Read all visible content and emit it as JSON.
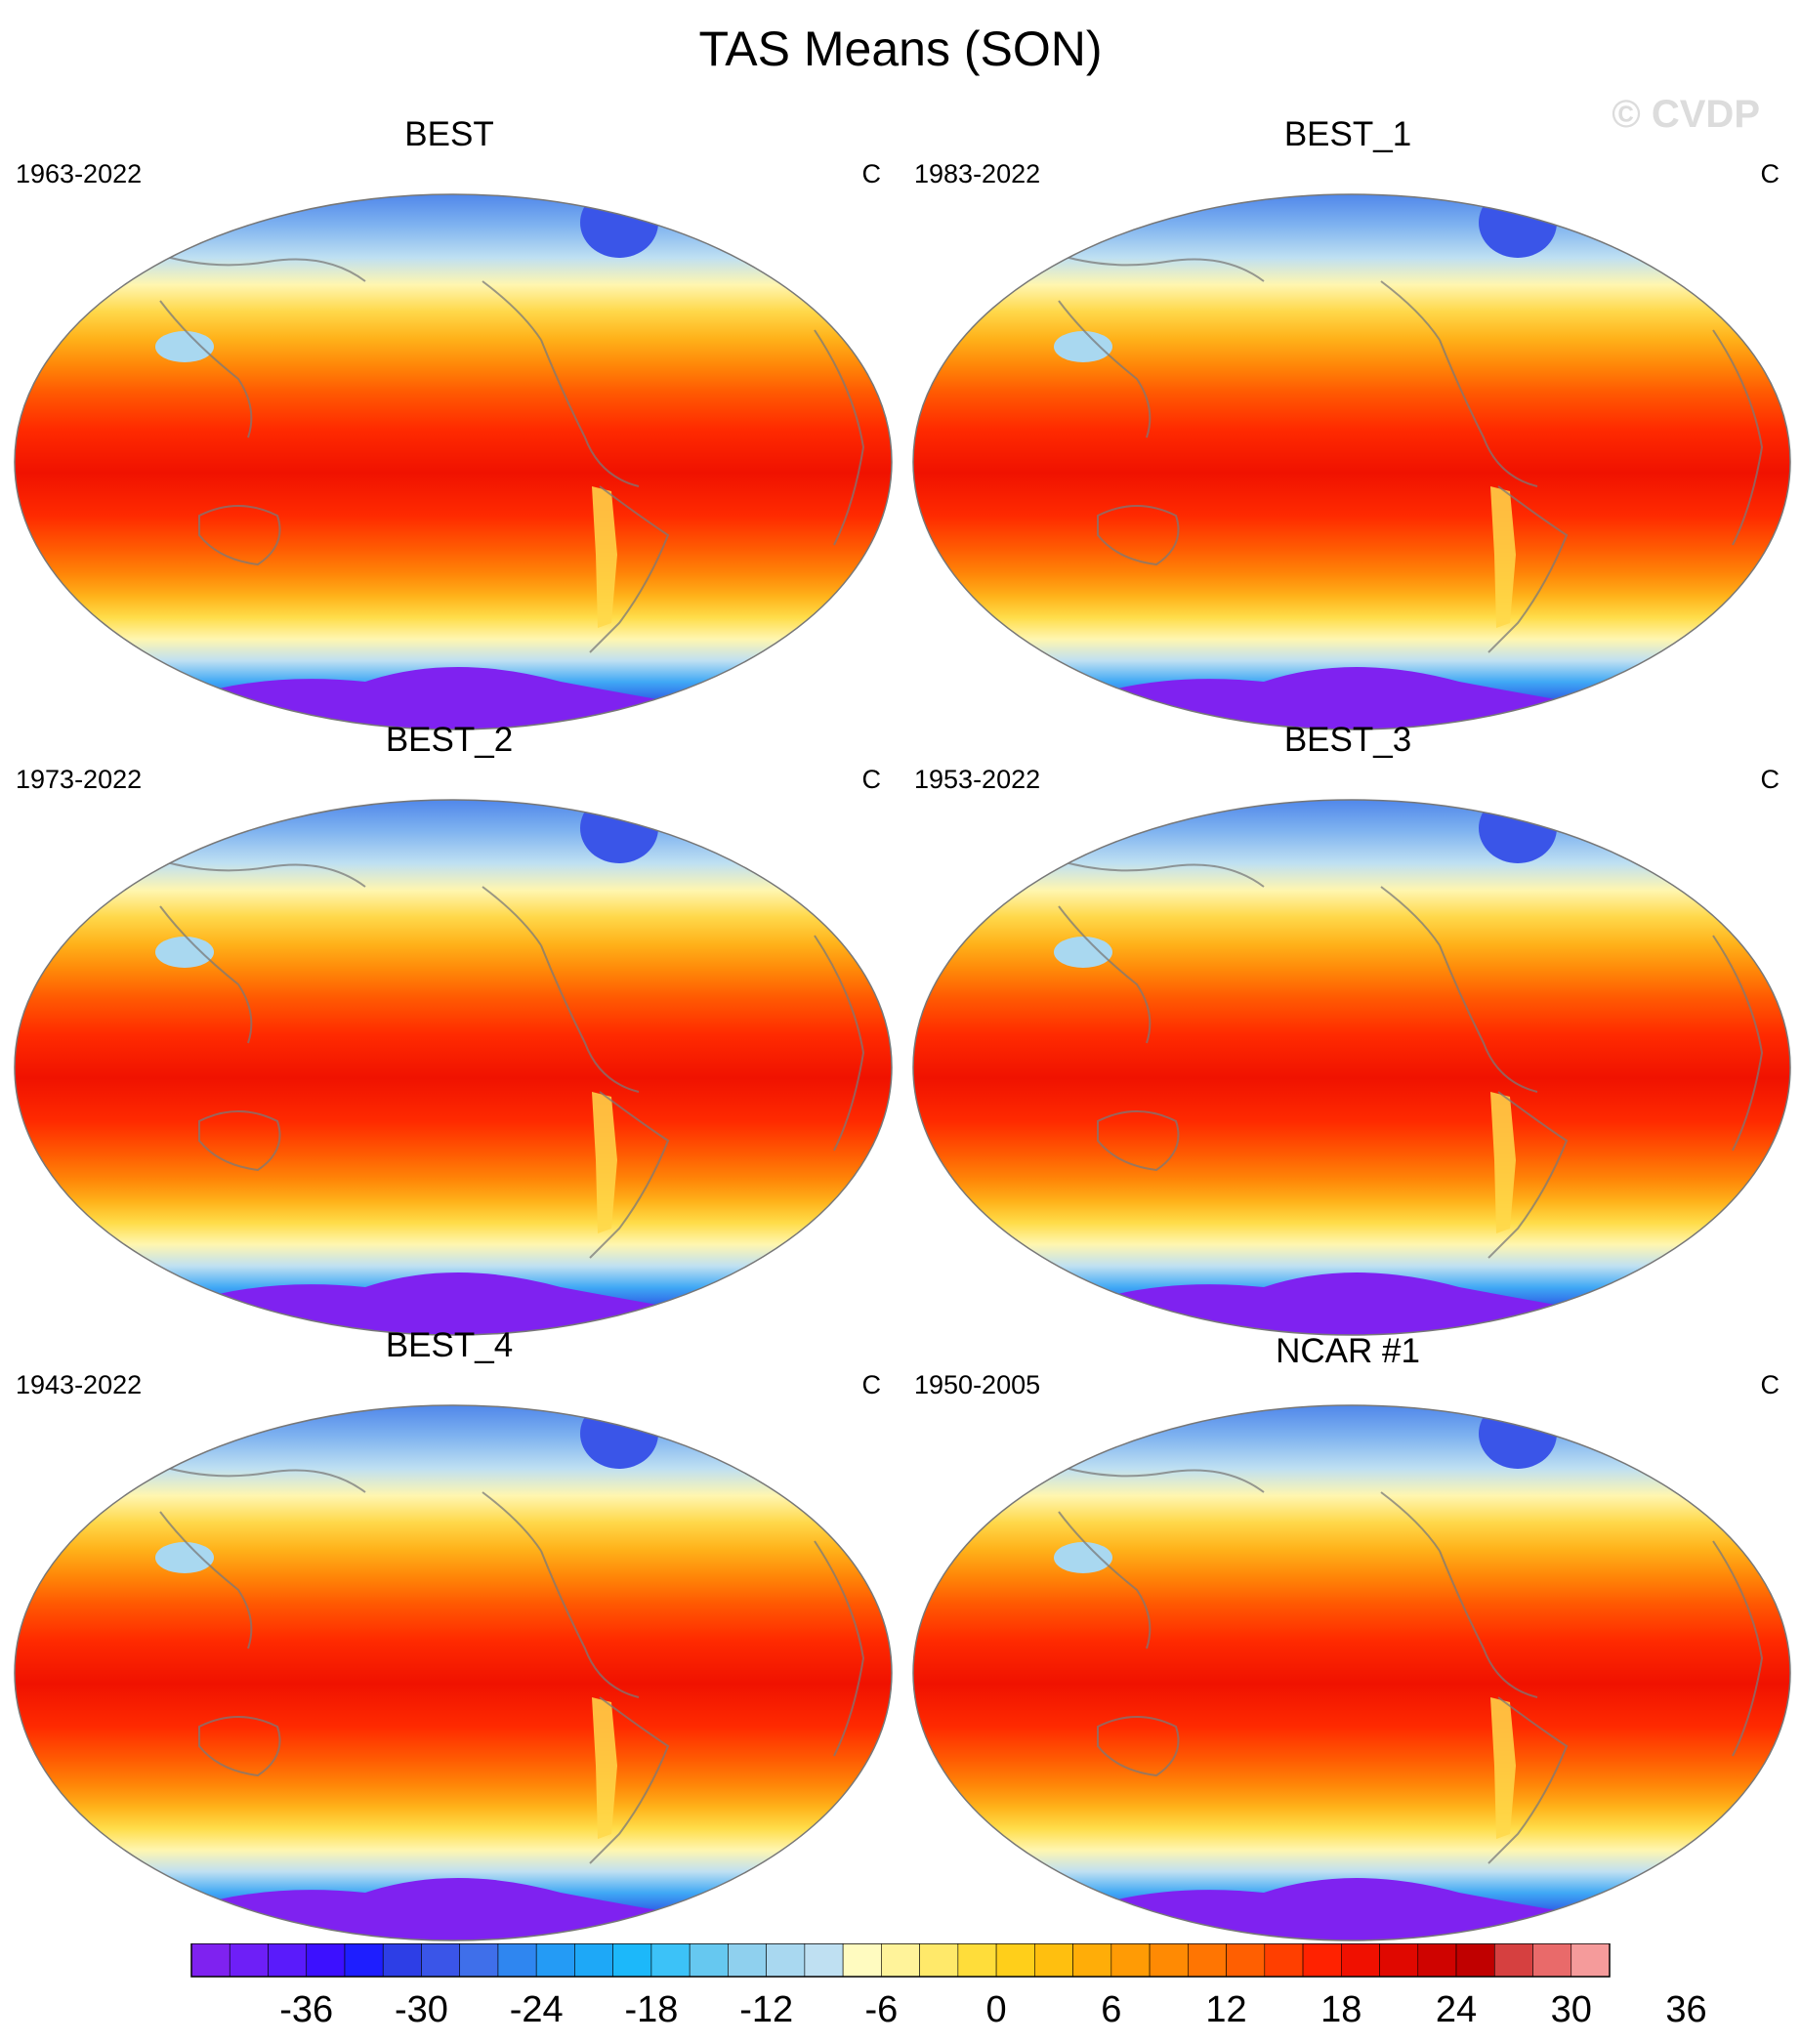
{
  "title": "TAS Means (SON)",
  "watermark": "© CVDP",
  "units": "C",
  "panels": [
    {
      "name": "BEST",
      "years": "1963-2022"
    },
    {
      "name": "BEST_1",
      "years": "1983-2022"
    },
    {
      "name": "BEST_2",
      "years": "1973-2022"
    },
    {
      "name": "BEST_3",
      "years": "1953-2022"
    },
    {
      "name": "BEST_4",
      "years": "1943-2022"
    },
    {
      "name": "NCAR #1",
      "years": "1950-2005"
    }
  ],
  "colorbar": {
    "tick_labels": [
      "-36",
      "-30",
      "-24",
      "-18",
      "-12",
      "-6",
      "0",
      "6",
      "12",
      "18",
      "24",
      "30",
      "36"
    ],
    "colors": [
      "#7f22f0",
      "#6e1ff7",
      "#5a1bfb",
      "#3c10ff",
      "#1e1eff",
      "#2d3ee6",
      "#3a55e8",
      "#3f6fea",
      "#2f86f0",
      "#249bf5",
      "#1ea8f7",
      "#1cb8fa",
      "#3cc2f8",
      "#66c8f0",
      "#8fd0ee",
      "#a9d8f0",
      "#bfe0f2",
      "#fffbc0",
      "#fff39a",
      "#ffe96a",
      "#ffdd3a",
      "#ffcf1a",
      "#ffbf0f",
      "#ffad08",
      "#ff9b05",
      "#ff8a03",
      "#ff7502",
      "#ff5f01",
      "#ff3f00",
      "#ff2200",
      "#f01000",
      "#e00800",
      "#cf0300",
      "#c00000",
      "#d64040",
      "#e96a6a",
      "#f59b9b"
    ]
  }
}
